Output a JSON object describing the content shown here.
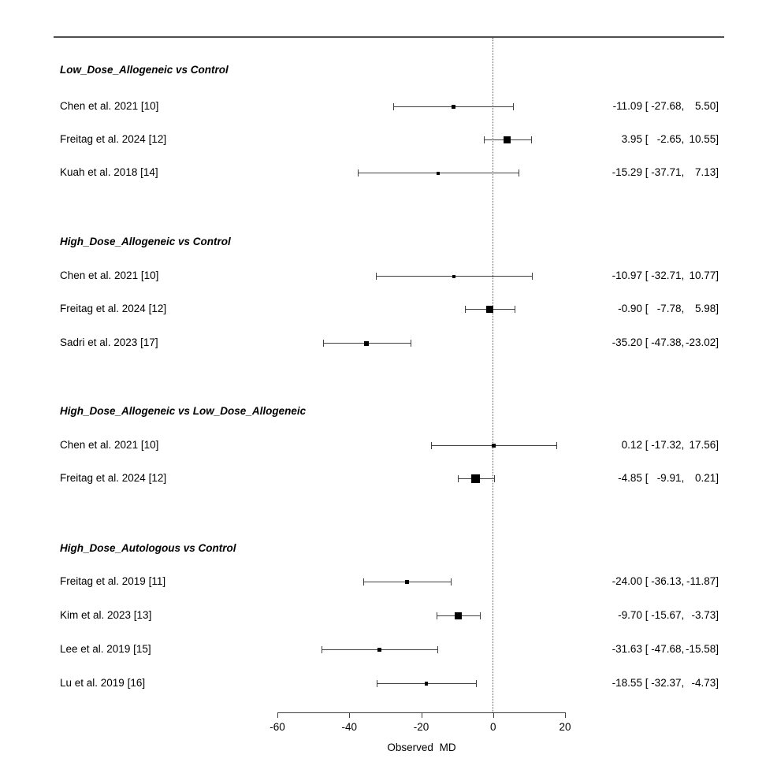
{
  "chart_data": {
    "type": "forest",
    "title": "",
    "xlabel": "Observed MD",
    "xlim": [
      -60,
      20
    ],
    "xticks": [
      -60,
      -40,
      -20,
      0,
      20
    ],
    "reference_line": 0,
    "grid": false,
    "colors": {
      "line": "#404040",
      "marker": "#000000",
      "text": "#000000",
      "top_rule": "#4f4f4f",
      "background": "#ffffff"
    },
    "groups": [
      {
        "label": "Low_Dose_Allogeneic vs Control",
        "rows": [
          {
            "study": "Chen et al. 2021 [10]",
            "md": -11.09,
            "ci": [
              -27.68,
              5.5
            ],
            "annotation": "-11.09 [-27.68,  5.50]"
          },
          {
            "study": "Freitag et al. 2024 [12]",
            "md": 3.95,
            "ci": [
              -2.65,
              10.55
            ],
            "annotation": "3.95 [ -2.65, 10.55]"
          },
          {
            "study": "Kuah et al. 2018 [14]",
            "md": -15.29,
            "ci": [
              -37.71,
              7.13
            ],
            "annotation": "-15.29 [-37.71,  7.13]"
          }
        ]
      },
      {
        "label": "High_Dose_Allogeneic vs Control",
        "rows": [
          {
            "study": "Chen et al. 2021 [10]",
            "md": -10.97,
            "ci": [
              -32.71,
              10.77
            ],
            "annotation": "-10.97 [-32.71, 10.77]"
          },
          {
            "study": "Freitag et al. 2024 [12]",
            "md": -0.9,
            "ci": [
              -7.78,
              5.98
            ],
            "annotation": "-0.90 [ -7.78,  5.98]"
          },
          {
            "study": "Sadri et al. 2023 [17]",
            "md": -35.2,
            "ci": [
              -47.38,
              -23.02
            ],
            "annotation": "-35.20 [-47.38, -23.02]"
          }
        ]
      },
      {
        "label": "High_Dose_Allogeneic vs Low_Dose_Allogeneic",
        "rows": [
          {
            "study": "Chen et al. 2021 [10]",
            "md": 0.12,
            "ci": [
              -17.32,
              17.56
            ],
            "annotation": "0.12 [-17.32, 17.56]"
          },
          {
            "study": "Freitag et al. 2024 [12]",
            "md": -4.85,
            "ci": [
              -9.91,
              0.21
            ],
            "annotation": "-4.85 [ -9.91,  0.21]"
          }
        ]
      },
      {
        "label": "High_Dose_Autologous vs Control",
        "rows": [
          {
            "study": "Freitag et al. 2019 [11]",
            "md": -24.0,
            "ci": [
              -36.13,
              -11.87
            ],
            "annotation": "-24.00 [-36.13, -11.87]"
          },
          {
            "study": "Kim et al. 2023 [13]",
            "md": -9.7,
            "ci": [
              -15.67,
              -3.73
            ],
            "annotation": "-9.70 [-15.67,  -3.73]"
          },
          {
            "study": "Lee et al. 2019 [15]",
            "md": -31.63,
            "ci": [
              -47.68,
              -15.58
            ],
            "annotation": "-31.63 [-47.68, -15.58]"
          },
          {
            "study": "Lu et al. 2019 [16]",
            "md": -18.55,
            "ci": [
              -32.37,
              -4.73
            ],
            "annotation": "-18.55 [-32.37,  -4.73]"
          }
        ]
      }
    ]
  }
}
